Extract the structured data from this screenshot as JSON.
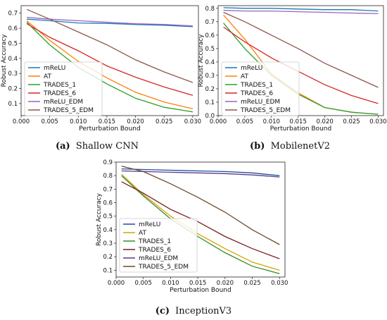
{
  "chart_data": [
    {
      "type": "line",
      "caption_letter": "(a)",
      "caption_text": "Shallow CNN",
      "xlabel": "Perturbation Bound",
      "ylabel": "Robust Accuracy",
      "xlim": [
        0.0,
        0.031
      ],
      "ylim": [
        0.02,
        0.75
      ],
      "xticks": [
        "0.000",
        "0.005",
        "0.010",
        "0.015",
        "0.020",
        "0.025",
        "0.030"
      ],
      "yticks": [
        "0.1",
        "0.2",
        "0.3",
        "0.4",
        "0.5",
        "0.6",
        "0.7"
      ],
      "legend_position": "lower left",
      "x": [
        0.001,
        0.005,
        0.01,
        0.015,
        0.02,
        0.025,
        0.03
      ],
      "series": [
        {
          "name": "mReLU",
          "color": "#1f77b4",
          "values": [
            0.66,
            0.65,
            0.635,
            0.632,
            0.625,
            0.62,
            0.61
          ]
        },
        {
          "name": "AT",
          "color": "#ff7f0e",
          "values": [
            0.65,
            0.52,
            0.38,
            0.27,
            0.175,
            0.11,
            0.065
          ]
        },
        {
          "name": "TRADES_1",
          "color": "#2ca02c",
          "values": [
            0.64,
            0.49,
            0.34,
            0.23,
            0.135,
            0.075,
            0.045
          ]
        },
        {
          "name": "TRADES_6",
          "color": "#d62728",
          "values": [
            0.63,
            0.54,
            0.45,
            0.35,
            0.275,
            0.21,
            0.155
          ]
        },
        {
          "name": "mReLU_EDM",
          "color": "#9467bd",
          "values": [
            0.672,
            0.66,
            0.65,
            0.64,
            0.63,
            0.625,
            0.615
          ]
        },
        {
          "name": "TRADES_5_EDM",
          "color": "#8c564b",
          "values": [
            0.725,
            0.66,
            0.575,
            0.49,
            0.39,
            0.31,
            0.24
          ]
        }
      ]
    },
    {
      "type": "line",
      "caption_letter": "(b)",
      "caption_text": "MobilenetV2",
      "xlabel": "Perturbation Bound",
      "ylabel": "Robust Accuracy",
      "xlim": [
        0.0,
        0.031
      ],
      "ylim": [
        0.0,
        0.82
      ],
      "xticks": [
        "0.000",
        "0.005",
        "0.010",
        "0.015",
        "0.020",
        "0.025",
        "0.030"
      ],
      "yticks": [
        "0.0",
        "0.1",
        "0.2",
        "0.3",
        "0.4",
        "0.5",
        "0.6",
        "0.7",
        "0.8"
      ],
      "legend_position": "lower left",
      "x": [
        0.001,
        0.005,
        0.01,
        0.015,
        0.02,
        0.025,
        0.03
      ],
      "series": [
        {
          "name": "mReLU",
          "color": "#1f77b4",
          "values": [
            0.805,
            0.8,
            0.8,
            0.795,
            0.79,
            0.79,
            0.78
          ]
        },
        {
          "name": "AT",
          "color": "#ff7f0e",
          "values": [
            0.75,
            0.57,
            0.31,
            0.17,
            0.06,
            0.025,
            0.01
          ]
        },
        {
          "name": "TRADES_1",
          "color": "#2ca02c",
          "values": [
            0.69,
            0.5,
            0.3,
            0.16,
            0.06,
            0.025,
            0.01
          ]
        },
        {
          "name": "TRADES_6",
          "color": "#d62728",
          "values": [
            0.66,
            0.55,
            0.43,
            0.33,
            0.23,
            0.15,
            0.09
          ]
        },
        {
          "name": "mReLU_EDM",
          "color": "#9467bd",
          "values": [
            0.785,
            0.78,
            0.78,
            0.775,
            0.77,
            0.765,
            0.76
          ]
        },
        {
          "name": "TRADES_5_EDM",
          "color": "#8c564b",
          "values": [
            0.77,
            0.7,
            0.6,
            0.5,
            0.39,
            0.3,
            0.21
          ]
        }
      ]
    },
    {
      "type": "line",
      "caption_letter": "(c)",
      "caption_text": "InceptionV3",
      "xlabel": "Perturbation Bound",
      "ylabel": "Robust Accuracy",
      "xlim": [
        0.0,
        0.031
      ],
      "ylim": [
        0.05,
        0.9
      ],
      "xticks": [
        "0.000",
        "0.005",
        "0.010",
        "0.015",
        "0.020",
        "0.025",
        "0.030"
      ],
      "yticks": [
        "0.1",
        "0.2",
        "0.3",
        "0.4",
        "0.5",
        "0.6",
        "0.7",
        "0.8",
        "0.9"
      ],
      "legend_position": "lower left",
      "x": [
        0.001,
        0.005,
        0.01,
        0.015,
        0.02,
        0.025,
        0.03
      ],
      "series": [
        {
          "name": "mReLU",
          "color": "#1f4e9c",
          "values": [
            0.85,
            0.845,
            0.84,
            0.835,
            0.83,
            0.82,
            0.8
          ]
        },
        {
          "name": "AT",
          "color": "#d4a300",
          "values": [
            0.81,
            0.66,
            0.5,
            0.37,
            0.26,
            0.16,
            0.1
          ]
        },
        {
          "name": "TRADES_1",
          "color": "#3a8a2a",
          "values": [
            0.8,
            0.65,
            0.48,
            0.35,
            0.23,
            0.13,
            0.075
          ]
        },
        {
          "name": "TRADES_6",
          "color": "#7a1f1f",
          "values": [
            0.755,
            0.67,
            0.55,
            0.46,
            0.35,
            0.26,
            0.185
          ]
        },
        {
          "name": "mReLU_EDM",
          "color": "#5b3a8c",
          "values": [
            0.835,
            0.83,
            0.825,
            0.82,
            0.815,
            0.805,
            0.79
          ]
        },
        {
          "name": "TRADES_5_EDM",
          "color": "#6b4a2b",
          "values": [
            0.87,
            0.83,
            0.74,
            0.64,
            0.53,
            0.4,
            0.29
          ]
        }
      ]
    }
  ]
}
